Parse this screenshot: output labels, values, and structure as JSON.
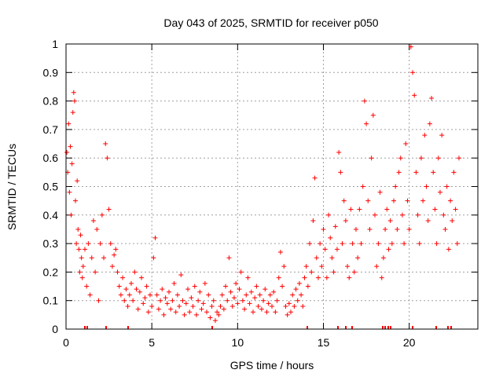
{
  "chart_data": {
    "type": "scatter",
    "title": "Day 043 of 2025, SRMTID for receiver p050",
    "xlabel": "GPS time / hours",
    "ylabel": "SRMTID / TECUs",
    "xlim": [
      0,
      24
    ],
    "ylim": [
      0,
      1
    ],
    "x_ticks": [
      "0",
      "5",
      "10",
      "15",
      "20"
    ],
    "x_tick_values": [
      0,
      5,
      10,
      15,
      20
    ],
    "y_ticks": [
      "0",
      "0.1",
      "0.2",
      "0.3",
      "0.4",
      "0.5",
      "0.6",
      "0.7",
      "0.8",
      "0.9",
      "1"
    ],
    "y_tick_values": [
      0,
      0.1,
      0.2,
      0.3,
      0.4,
      0.5,
      0.6,
      0.7,
      0.8,
      0.9,
      1
    ],
    "grid": true,
    "marker": "+",
    "color": "#ff0000",
    "series": [
      {
        "name": "SRMTID",
        "points": [
          [
            0.05,
            0.62
          ],
          [
            0.1,
            0.55
          ],
          [
            0.15,
            0.72
          ],
          [
            0.2,
            0.48
          ],
          [
            0.25,
            0.64
          ],
          [
            0.3,
            0.4
          ],
          [
            0.35,
            0.58
          ],
          [
            0.4,
            0.76
          ],
          [
            0.45,
            0.83
          ],
          [
            0.5,
            0.8
          ],
          [
            0.55,
            0.45
          ],
          [
            0.6,
            0.3
          ],
          [
            0.65,
            0.52
          ],
          [
            0.7,
            0.35
          ],
          [
            0.75,
            0.28
          ],
          [
            0.8,
            0.2
          ],
          [
            0.85,
            0.33
          ],
          [
            0.9,
            0.25
          ],
          [
            0.95,
            0.18
          ],
          [
            1.0,
            0.22
          ],
          [
            1.1,
            0.28
          ],
          [
            1.2,
            0.15
          ],
          [
            1.3,
            0.3
          ],
          [
            1.4,
            0.12
          ],
          [
            1.5,
            0.25
          ],
          [
            1.6,
            0.38
          ],
          [
            1.7,
            0.2
          ],
          [
            1.8,
            0.35
          ],
          [
            1.9,
            0.1
          ],
          [
            2.0,
            0.3
          ],
          [
            2.1,
            0.4
          ],
          [
            2.2,
            0.25
          ],
          [
            2.3,
            0.65
          ],
          [
            2.4,
            0.6
          ],
          [
            2.5,
            0.42
          ],
          [
            2.6,
            0.3
          ],
          [
            2.7,
            0.22
          ],
          [
            2.8,
            0.26
          ],
          [
            2.9,
            0.28
          ],
          [
            3.0,
            0.2
          ],
          [
            3.1,
            0.15
          ],
          [
            3.2,
            0.12
          ],
          [
            3.3,
            0.18
          ],
          [
            3.4,
            0.1
          ],
          [
            3.5,
            0.14
          ],
          [
            3.6,
            0.08
          ],
          [
            3.7,
            0.12
          ],
          [
            3.8,
            0.16
          ],
          [
            3.9,
            0.1
          ],
          [
            4.0,
            0.2
          ],
          [
            4.1,
            0.14
          ],
          [
            4.2,
            0.07
          ],
          [
            4.3,
            0.13
          ],
          [
            4.4,
            0.18
          ],
          [
            4.5,
            0.09
          ],
          [
            4.6,
            0.11
          ],
          [
            4.7,
            0.15
          ],
          [
            4.8,
            0.06
          ],
          [
            4.9,
            0.12
          ],
          [
            5.0,
            0.08
          ],
          [
            5.1,
            0.25
          ],
          [
            5.2,
            0.32
          ],
          [
            5.3,
            0.12
          ],
          [
            5.4,
            0.07
          ],
          [
            5.5,
            0.1
          ],
          [
            5.6,
            0.14
          ],
          [
            5.7,
            0.05
          ],
          [
            5.8,
            0.11
          ],
          [
            5.9,
            0.09
          ],
          [
            6.0,
            0.13
          ],
          [
            6.1,
            0.07
          ],
          [
            6.2,
            0.1
          ],
          [
            6.3,
            0.16
          ],
          [
            6.4,
            0.06
          ],
          [
            6.5,
            0.12
          ],
          [
            6.6,
            0.08
          ],
          [
            6.7,
            0.19
          ],
          [
            6.8,
            0.1
          ],
          [
            6.9,
            0.05
          ],
          [
            7.0,
            0.09
          ],
          [
            7.1,
            0.14
          ],
          [
            7.2,
            0.06
          ],
          [
            7.3,
            0.11
          ],
          [
            7.4,
            0.08
          ],
          [
            7.5,
            0.15
          ],
          [
            7.6,
            0.05
          ],
          [
            7.7,
            0.1
          ],
          [
            7.8,
            0.13
          ],
          [
            7.9,
            0.07
          ],
          [
            8.0,
            0.09
          ],
          [
            8.1,
            0.16
          ],
          [
            8.2,
            0.06
          ],
          [
            8.3,
            0.12
          ],
          [
            8.4,
            0.04
          ],
          [
            8.5,
            0.08
          ],
          [
            8.6,
            0.1
          ],
          [
            8.7,
            0.03
          ],
          [
            8.8,
            0.06
          ],
          [
            8.9,
            0.05
          ],
          [
            9.0,
            0.08
          ],
          [
            9.1,
            0.12
          ],
          [
            9.2,
            0.07
          ],
          [
            9.3,
            0.15
          ],
          [
            9.4,
            0.1
          ],
          [
            9.5,
            0.25
          ],
          [
            9.6,
            0.13
          ],
          [
            9.7,
            0.08
          ],
          [
            9.8,
            0.11
          ],
          [
            9.9,
            0.16
          ],
          [
            10.0,
            0.09
          ],
          [
            10.1,
            0.14
          ],
          [
            10.2,
            0.2
          ],
          [
            10.3,
            0.1
          ],
          [
            10.4,
            0.07
          ],
          [
            10.5,
            0.12
          ],
          [
            10.6,
            0.18
          ],
          [
            10.7,
            0.09
          ],
          [
            10.8,
            0.13
          ],
          [
            10.9,
            0.06
          ],
          [
            11.0,
            0.11
          ],
          [
            11.1,
            0.15
          ],
          [
            11.2,
            0.08
          ],
          [
            11.3,
            0.12
          ],
          [
            11.4,
            0.07
          ],
          [
            11.5,
            0.1
          ],
          [
            11.6,
            0.14
          ],
          [
            11.7,
            0.06
          ],
          [
            11.8,
            0.09
          ],
          [
            11.9,
            0.12
          ],
          [
            12.0,
            0.08
          ],
          [
            12.1,
            0.13
          ],
          [
            12.2,
            0.06
          ],
          [
            12.3,
            0.1
          ],
          [
            12.4,
            0.18
          ],
          [
            12.5,
            0.27
          ],
          [
            12.6,
            0.15
          ],
          [
            12.7,
            0.22
          ],
          [
            12.8,
            0.08
          ],
          [
            12.9,
            0.05
          ],
          [
            13.0,
            0.09
          ],
          [
            13.1,
            0.06
          ],
          [
            13.2,
            0.12
          ],
          [
            13.3,
            0.08
          ],
          [
            13.4,
            0.14
          ],
          [
            13.5,
            0.1
          ],
          [
            13.6,
            0.16
          ],
          [
            13.7,
            0.12
          ],
          [
            13.8,
            0.08
          ],
          [
            13.9,
            0.18
          ],
          [
            14.0,
            0.22
          ],
          [
            14.1,
            0.15
          ],
          [
            14.2,
            0.3
          ],
          [
            14.3,
            0.2
          ],
          [
            14.4,
            0.38
          ],
          [
            14.5,
            0.53
          ],
          [
            14.6,
            0.25
          ],
          [
            14.7,
            0.18
          ],
          [
            14.8,
            0.3
          ],
          [
            14.9,
            0.22
          ],
          [
            15.0,
            0.35
          ],
          [
            15.1,
            0.28
          ],
          [
            15.2,
            0.18
          ],
          [
            15.3,
            0.4
          ],
          [
            15.4,
            0.32
          ],
          [
            15.5,
            0.25
          ],
          [
            15.6,
            0.2
          ],
          [
            15.7,
            0.36
          ],
          [
            15.8,
            0.28
          ],
          [
            15.9,
            0.62
          ],
          [
            16.0,
            0.55
          ],
          [
            16.1,
            0.3
          ],
          [
            16.2,
            0.45
          ],
          [
            16.3,
            0.38
          ],
          [
            16.4,
            0.22
          ],
          [
            16.5,
            0.18
          ],
          [
            16.6,
            0.42
          ],
          [
            16.7,
            0.3
          ],
          [
            16.8,
            0.2
          ],
          [
            16.9,
            0.35
          ],
          [
            17.0,
            0.25
          ],
          [
            17.1,
            0.42
          ],
          [
            17.2,
            0.3
          ],
          [
            17.3,
            0.5
          ],
          [
            17.4,
            0.8
          ],
          [
            17.5,
            0.72
          ],
          [
            17.6,
            0.45
          ],
          [
            17.7,
            0.35
          ],
          [
            17.8,
            0.6
          ],
          [
            17.9,
            0.75
          ],
          [
            18.0,
            0.4
          ],
          [
            18.1,
            0.22
          ],
          [
            18.2,
            0.3
          ],
          [
            18.3,
            0.48
          ],
          [
            18.4,
            0.18
          ],
          [
            18.5,
            0.25
          ],
          [
            18.6,
            0.35
          ],
          [
            18.7,
            0.42
          ],
          [
            18.8,
            0.28
          ],
          [
            18.9,
            0.38
          ],
          [
            19.0,
            0.3
          ],
          [
            19.1,
            0.45
          ],
          [
            19.2,
            0.5
          ],
          [
            19.3,
            0.35
          ],
          [
            19.4,
            0.55
          ],
          [
            19.5,
            0.6
          ],
          [
            19.6,
            0.4
          ],
          [
            19.7,
            0.3
          ],
          [
            19.8,
            0.65
          ],
          [
            19.9,
            0.45
          ],
          [
            20.0,
            0.35
          ],
          [
            20.1,
            0.99
          ],
          [
            20.2,
            0.9
          ],
          [
            20.3,
            0.82
          ],
          [
            20.4,
            0.55
          ],
          [
            20.5,
            0.4
          ],
          [
            20.6,
            0.3
          ],
          [
            20.7,
            0.6
          ],
          [
            20.8,
            0.45
          ],
          [
            20.9,
            0.68
          ],
          [
            21.0,
            0.5
          ],
          [
            21.1,
            0.38
          ],
          [
            21.2,
            0.72
          ],
          [
            21.3,
            0.81
          ],
          [
            21.4,
            0.55
          ],
          [
            21.5,
            0.42
          ],
          [
            21.6,
            0.3
          ],
          [
            21.7,
            0.6
          ],
          [
            21.8,
            0.48
          ],
          [
            21.9,
            0.68
          ],
          [
            22.0,
            0.4
          ],
          [
            22.1,
            0.35
          ],
          [
            22.2,
            0.5
          ],
          [
            22.3,
            0.28
          ],
          [
            22.4,
            0.45
          ],
          [
            22.5,
            0.38
          ],
          [
            22.6,
            0.55
          ],
          [
            22.7,
            0.42
          ],
          [
            22.8,
            0.3
          ],
          [
            22.9,
            0.6
          ]
        ]
      }
    ]
  }
}
